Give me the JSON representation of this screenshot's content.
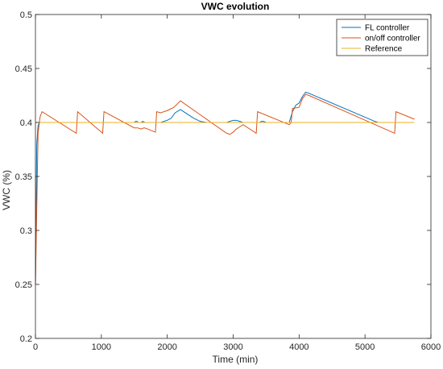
{
  "chart_data": {
    "type": "line",
    "title": "VWC evolution",
    "xlabel": "Time (min)",
    "ylabel": "VWC (%)",
    "xlim": [
      0,
      6000
    ],
    "ylim": [
      0.2,
      0.5
    ],
    "xticks": [
      0,
      1000,
      2000,
      3000,
      4000,
      5000,
      6000
    ],
    "yticks": [
      0.2,
      0.25,
      0.3,
      0.35,
      0.4,
      0.45,
      0.5
    ],
    "grid": false,
    "legend_position": "top-right",
    "series": [
      {
        "name": "FL controller",
        "color": "#0072BD",
        "x": [
          0,
          20,
          40,
          60,
          100,
          1500,
          1520,
          1540,
          1560,
          1600,
          1630,
          1660,
          1700,
          1900,
          2000,
          2060,
          2120,
          2200,
          2300,
          2400,
          2500,
          2600,
          2900,
          2950,
          3000,
          3050,
          3100,
          3150,
          3400,
          3430,
          3460,
          3500,
          3850,
          3900,
          3950,
          4000,
          4050,
          4100,
          4150,
          5150,
          5200
        ],
        "y": [
          0.25,
          0.38,
          0.397,
          0.4,
          0.4,
          0.4,
          0.401,
          0.401,
          0.4,
          0.4,
          0.401,
          0.4,
          0.4,
          0.4,
          0.402,
          0.404,
          0.409,
          0.412,
          0.408,
          0.404,
          0.401,
          0.4,
          0.4,
          0.401,
          0.402,
          0.402,
          0.401,
          0.4,
          0.4,
          0.401,
          0.401,
          0.4,
          0.4,
          0.41,
          0.416,
          0.418,
          0.424,
          0.428,
          0.427,
          0.401,
          0.4
        ]
      },
      {
        "name": "on/off controller",
        "color": "#D95319",
        "x": [
          0,
          40,
          70,
          100,
          620,
          640,
          1020,
          1040,
          1500,
          1550,
          1600,
          1650,
          1700,
          1820,
          1840,
          1900,
          2000,
          2100,
          2200,
          2900,
          2950,
          3000,
          3050,
          3100,
          3150,
          3350,
          3370,
          3850,
          3880,
          3900,
          4000,
          4050,
          4100,
          4150,
          5450,
          5470,
          5750
        ],
        "y": [
          0.25,
          0.39,
          0.405,
          0.41,
          0.39,
          0.41,
          0.39,
          0.41,
          0.395,
          0.395,
          0.394,
          0.395,
          0.394,
          0.391,
          0.41,
          0.409,
          0.411,
          0.414,
          0.42,
          0.39,
          0.389,
          0.391,
          0.394,
          0.396,
          0.398,
          0.39,
          0.41,
          0.398,
          0.4,
          0.413,
          0.414,
          0.422,
          0.426,
          0.425,
          0.39,
          0.41,
          0.403
        ]
      },
      {
        "name": "Reference",
        "color": "#EDB120",
        "x": [
          0,
          5750
        ],
        "y": [
          0.4,
          0.4
        ]
      }
    ]
  }
}
